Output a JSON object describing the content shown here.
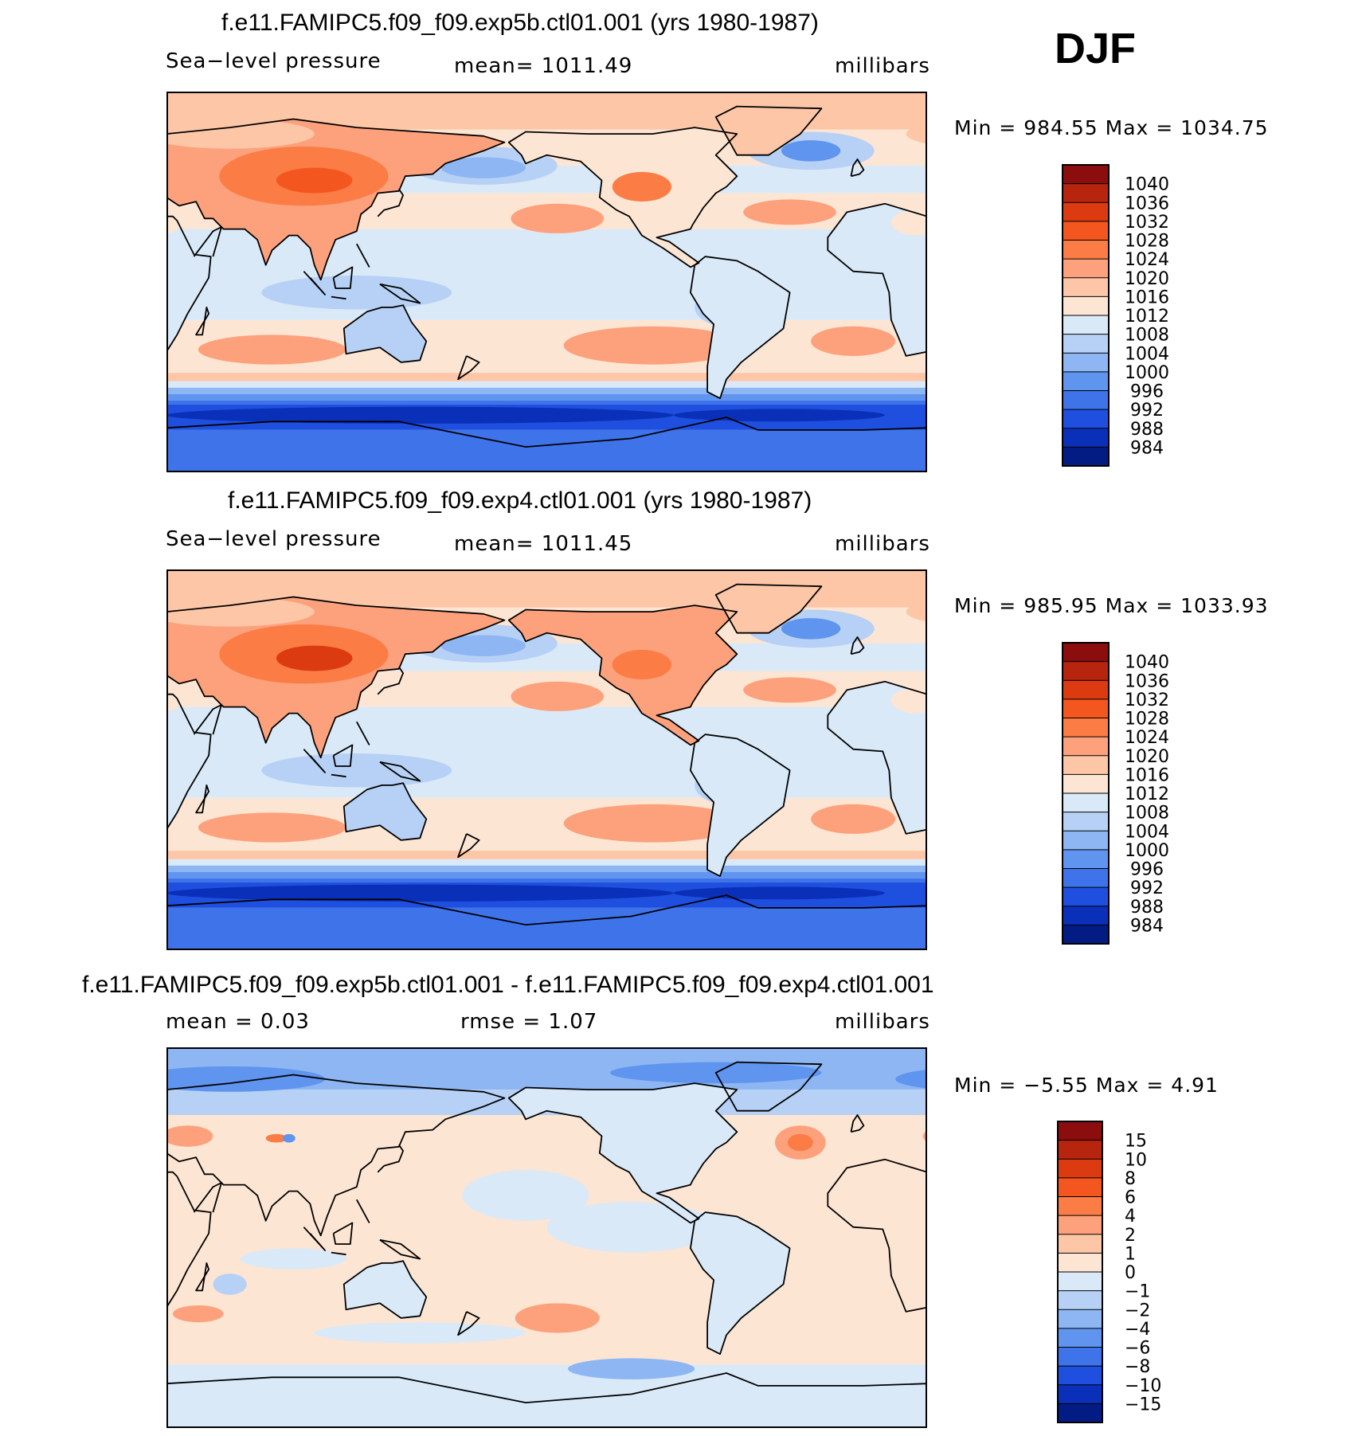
{
  "season": "DJF",
  "panels": [
    {
      "id": "exp5b",
      "title": "f.e11.FAMIPC5.f09_f09.exp5b.ctl01.001 (yrs 1980-1987)",
      "variable": "Sea−level pressure",
      "stat1": "mean=  1011.49",
      "stat2": "",
      "units": "millibars",
      "minmax": "Min  =  984.55  Max  =  1034.75",
      "scale": "abs"
    },
    {
      "id": "exp4",
      "title": "f.e11.FAMIPC5.f09_f09.exp4.ctl01.001 (yrs 1980-1987)",
      "variable": "Sea−level pressure",
      "stat1": "mean=  1011.45",
      "stat2": "",
      "units": "millibars",
      "minmax": "Min  =  985.95  Max  =  1033.93",
      "scale": "abs"
    },
    {
      "id": "diff",
      "title": "f.e11.FAMIPC5.f09_f09.exp5b.ctl01.001 - f.e11.FAMIPC5.f09_f09.exp4.ctl01.001",
      "variable": "",
      "stat1": "mean  =     0.03",
      "stat2": "rmse  =     1.07",
      "units": "millibars",
      "minmax": "Min  =    −5.55  Max  =     4.91",
      "scale": "diff"
    }
  ],
  "chart_data": [
    {
      "type": "heatmap",
      "title": "f.e11.FAMIPC5.f09_f09.exp5b.ctl01.001 (yrs 1980-1987)",
      "variable": "Sea-level pressure",
      "units": "millibars",
      "mean": 1011.49,
      "min": 984.55,
      "max": 1034.75,
      "season": "DJF",
      "colorbar_levels": [
        "1040",
        "1036",
        "1032",
        "1028",
        "1024",
        "1020",
        "1016",
        "1012",
        "1008",
        "1004",
        "1000",
        "996",
        "992",
        "988",
        "984"
      ],
      "colorbar_colors": [
        "#8b0d0d",
        "#b7250f",
        "#dc3b12",
        "#f3571f",
        "#fb7c45",
        "#fca17c",
        "#fcc6a7",
        "#fde5d3",
        "#d9e9f8",
        "#b6d1f5",
        "#8db6f3",
        "#5f94ef",
        "#3e73ea",
        "#1f4fde",
        "#0a30b9",
        "#031c84"
      ]
    },
    {
      "type": "heatmap",
      "title": "f.e11.FAMIPC5.f09_f09.exp4.ctl01.001 (yrs 1980-1987)",
      "variable": "Sea-level pressure",
      "units": "millibars",
      "mean": 1011.45,
      "min": 985.95,
      "max": 1033.93,
      "season": "DJF",
      "colorbar_levels": [
        "1040",
        "1036",
        "1032",
        "1028",
        "1024",
        "1020",
        "1016",
        "1012",
        "1008",
        "1004",
        "1000",
        "996",
        "992",
        "988",
        "984"
      ],
      "colorbar_colors": [
        "#8b0d0d",
        "#b7250f",
        "#dc3b12",
        "#f3571f",
        "#fb7c45",
        "#fca17c",
        "#fcc6a7",
        "#fde5d3",
        "#d9e9f8",
        "#b6d1f5",
        "#8db6f3",
        "#5f94ef",
        "#3e73ea",
        "#1f4fde",
        "#0a30b9",
        "#031c84"
      ]
    },
    {
      "type": "heatmap",
      "title": "f.e11.FAMIPC5.f09_f09.exp5b.ctl01.001 - f.e11.FAMIPC5.f09_f09.exp4.ctl01.001",
      "units": "millibars",
      "mean": 0.03,
      "rmse": 1.07,
      "min": -5.55,
      "max": 4.91,
      "season": "DJF",
      "colorbar_levels": [
        "15",
        "10",
        "8",
        "6",
        "4",
        "2",
        "1",
        "0",
        "−1",
        "−2",
        "−4",
        "−6",
        "−8",
        "−10",
        "−15"
      ],
      "colorbar_colors": [
        "#8b0d0d",
        "#b7250f",
        "#dc3b12",
        "#f3571f",
        "#fb7c45",
        "#fca17c",
        "#fcc6a7",
        "#fde5d3",
        "#d9e9f8",
        "#b6d1f5",
        "#8db6f3",
        "#5f94ef",
        "#3e73ea",
        "#1f4fde",
        "#0a30b9",
        "#031c84"
      ]
    }
  ]
}
